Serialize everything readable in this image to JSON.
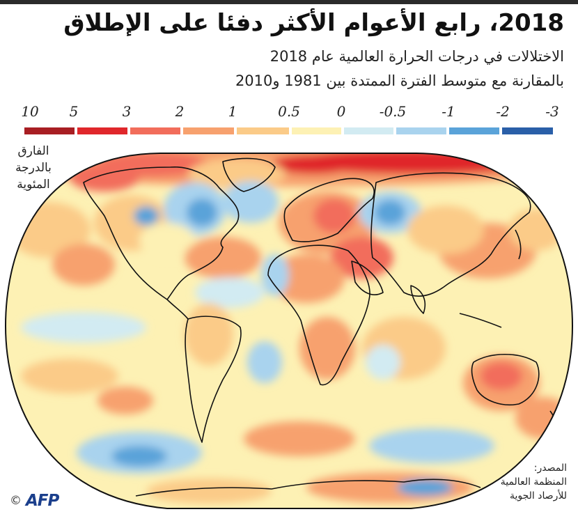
{
  "title": "2018، رابع الأعوام الأكثر دفئا على الإطلاق",
  "subtitle_line1": "الاختلالات في درجات الحرارة العالمية عام 2018",
  "subtitle_line2": "بالمقارنة مع متوسط الفترة الممتدة بين 1981 و2010",
  "legend": {
    "title": "الفارق بالدرجة المئوية",
    "title_lines": [
      "الفارق",
      "بالدرجة",
      "المئوية"
    ],
    "ticks": [
      "10",
      "5",
      "3",
      "2",
      "1",
      "0.5",
      "0",
      "-0.5",
      "-1",
      "-2",
      "-3"
    ],
    "bins": [
      {
        "from": "10",
        "to": "5",
        "color": "#a81e23"
      },
      {
        "from": "5",
        "to": "3",
        "color": "#e0272b"
      },
      {
        "from": "3",
        "to": "2",
        "color": "#f26d5b"
      },
      {
        "from": "2",
        "to": "1",
        "color": "#f7a16e"
      },
      {
        "from": "1",
        "to": "0.5",
        "color": "#fbcb88"
      },
      {
        "from": "0.5",
        "to": "0",
        "color": "#fdf1b4"
      },
      {
        "from": "0",
        "to": "-0.5",
        "color": "#d2ebf2"
      },
      {
        "from": "-0.5",
        "to": "-1",
        "color": "#a9d3ee"
      },
      {
        "from": "-1",
        "to": "-2",
        "color": "#5aa3d9"
      },
      {
        "from": "-2",
        "to": "-3",
        "color": "#2a5fa8"
      }
    ]
  },
  "map": {
    "projection": "world map (rounded pseudo-cylindrical)",
    "base_color": "#fdf1b4",
    "coastline_color": "#111111",
    "outline_color": "#111111"
  },
  "source": {
    "label": "المصدر:",
    "lines": [
      "المنظمة العالمية",
      "للأرصاد الجوية"
    ]
  },
  "credit": {
    "symbol": "©",
    "agency": "AFP",
    "color": "#1b3f8c"
  }
}
